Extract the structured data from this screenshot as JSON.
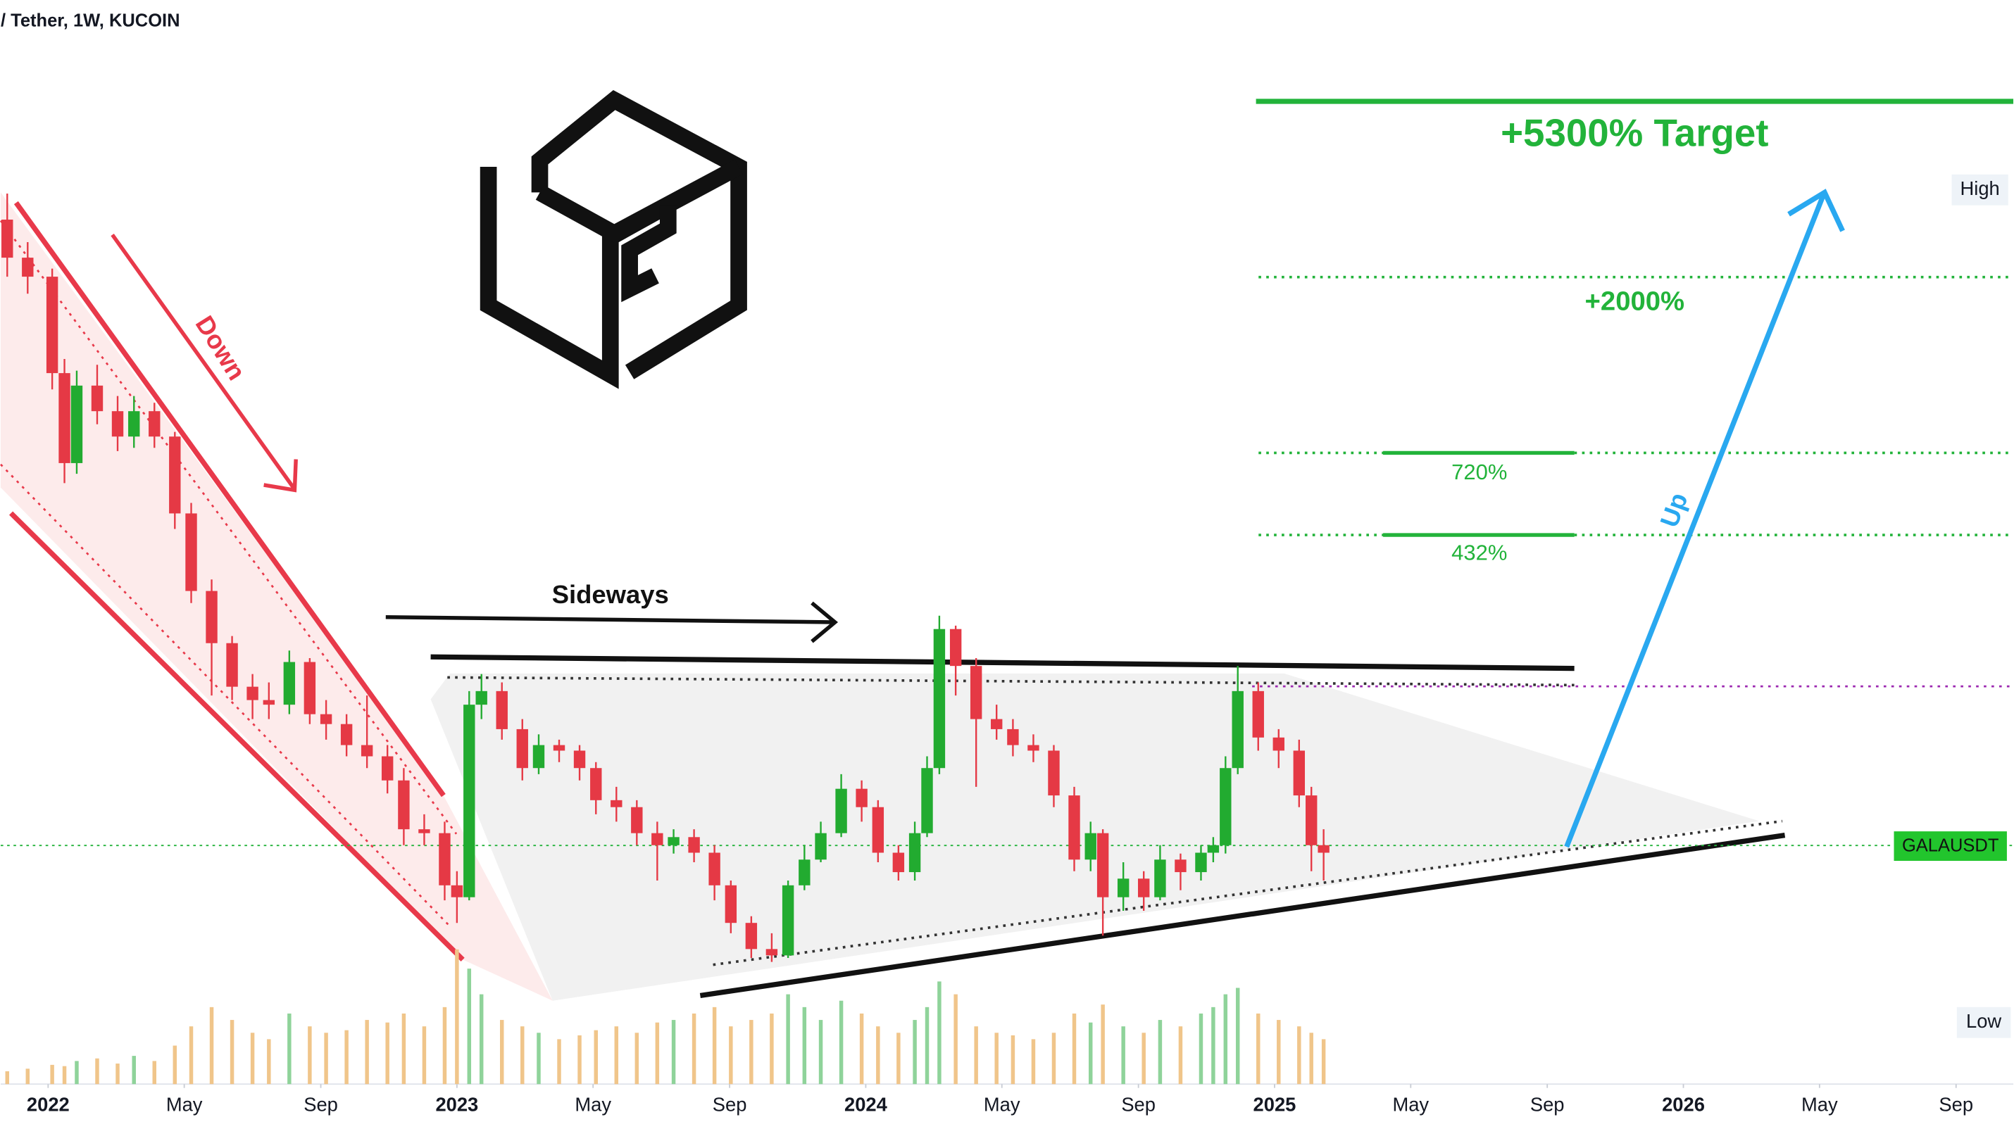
{
  "chart_data": {
    "type": "candlestick",
    "title": "/ Tether, 1W, KUCOIN",
    "log_scale": true,
    "ylim": [
      0.0114,
      0.92
    ],
    "xlim": [
      2021.884,
      2026.807
    ],
    "xticks": [
      2022,
      {
        "value": 2022.333,
        "label": "May"
      },
      {
        "value": 2022.667,
        "label": "Sep"
      },
      2023,
      {
        "value": 2023.333,
        "label": "May"
      },
      {
        "value": 2023.667,
        "label": "Sep"
      },
      2024,
      {
        "value": 2024.333,
        "label": "May"
      },
      {
        "value": 2024.667,
        "label": "Sep"
      },
      2025,
      {
        "value": 2025.333,
        "label": "May"
      },
      {
        "value": 2025.667,
        "label": "Sep"
      },
      2026,
      {
        "value": 2026.333,
        "label": "May"
      },
      {
        "value": 2026.667,
        "label": "Sep"
      }
    ],
    "up_color": "#22ab30",
    "down_color": "#e53945",
    "volume_up_color": "#8fd39a",
    "volume_down_color": "#f0c58a",
    "x": [
      2021.9,
      2021.95,
      2022.01,
      2022.04,
      2022.07,
      2022.12,
      2022.17,
      2022.21,
      2022.26,
      2022.31,
      2022.35,
      2022.4,
      2022.45,
      2022.5,
      2022.54,
      2022.59,
      2022.64,
      2022.68,
      2022.73,
      2022.78,
      2022.83,
      2022.87,
      2022.92,
      2022.97,
      2023.0,
      2023.03,
      2023.06,
      2023.11,
      2023.16,
      2023.2,
      2023.25,
      2023.3,
      2023.34,
      2023.39,
      2023.44,
      2023.49,
      2023.53,
      2023.58,
      2023.63,
      2023.67,
      2023.72,
      2023.77,
      2023.81,
      2023.85,
      2023.89,
      2023.94,
      2023.99,
      2024.03,
      2024.08,
      2024.12,
      2024.15,
      2024.18,
      2024.22,
      2024.27,
      2024.32,
      2024.36,
      2024.41,
      2024.46,
      2024.51,
      2024.55,
      2024.58,
      2024.63,
      2024.68,
      2024.72,
      2024.77,
      2024.82,
      2024.85,
      2024.88,
      2024.91,
      2024.96,
      2025.01,
      2025.06,
      2025.09,
      2025.12
    ],
    "open": [
      0.378,
      0.324,
      0.3,
      0.203,
      0.141,
      0.193,
      0.174,
      0.157,
      0.174,
      0.157,
      0.115,
      0.084,
      0.068,
      0.057,
      0.054,
      0.053,
      0.063,
      0.051,
      0.049,
      0.045,
      0.043,
      0.039,
      0.032,
      0.0315,
      0.0255,
      0.0243,
      0.053,
      0.056,
      0.048,
      0.041,
      0.045,
      0.044,
      0.041,
      0.036,
      0.035,
      0.0315,
      0.03,
      0.031,
      0.0291,
      0.0255,
      0.0219,
      0.0197,
      0.0192,
      0.0255,
      0.0283,
      0.0315,
      0.0377,
      0.035,
      0.0291,
      0.0269,
      0.0315,
      0.041,
      0.072,
      0.062,
      0.05,
      0.048,
      0.045,
      0.044,
      0.0367,
      0.0283,
      0.0315,
      0.0243,
      0.0262,
      0.0243,
      0.0283,
      0.0269,
      0.0291,
      0.03,
      0.041,
      0.056,
      0.0464,
      0.044,
      0.0367,
      0.03
    ],
    "high": [
      0.42,
      0.345,
      0.31,
      0.215,
      0.205,
      0.21,
      0.185,
      0.185,
      0.18,
      0.16,
      0.12,
      0.088,
      0.07,
      0.06,
      0.058,
      0.066,
      0.064,
      0.054,
      0.051,
      0.055,
      0.045,
      0.041,
      0.034,
      0.033,
      0.027,
      0.056,
      0.06,
      0.058,
      0.05,
      0.047,
      0.046,
      0.045,
      0.042,
      0.038,
      0.036,
      0.033,
      0.032,
      0.032,
      0.03,
      0.026,
      0.0225,
      0.021,
      0.026,
      0.03,
      0.033,
      0.04,
      0.039,
      0.036,
      0.03,
      0.033,
      0.043,
      0.076,
      0.073,
      0.064,
      0.053,
      0.05,
      0.047,
      0.045,
      0.038,
      0.033,
      0.032,
      0.028,
      0.027,
      0.03,
      0.029,
      0.03,
      0.031,
      0.043,
      0.062,
      0.058,
      0.048,
      0.046,
      0.038,
      0.032
    ],
    "low": [
      0.3,
      0.28,
      0.19,
      0.13,
      0.135,
      0.165,
      0.148,
      0.15,
      0.15,
      0.108,
      0.08,
      0.055,
      0.054,
      0.05,
      0.05,
      0.051,
      0.049,
      0.046,
      0.043,
      0.041,
      0.037,
      0.03,
      0.03,
      0.024,
      0.0219,
      0.024,
      0.05,
      0.046,
      0.039,
      0.04,
      0.042,
      0.039,
      0.034,
      0.033,
      0.03,
      0.026,
      0.029,
      0.028,
      0.024,
      0.021,
      0.019,
      0.0187,
      0.019,
      0.025,
      0.028,
      0.031,
      0.033,
      0.028,
      0.026,
      0.026,
      0.031,
      0.04,
      0.055,
      0.038,
      0.046,
      0.043,
      0.042,
      0.035,
      0.027,
      0.027,
      0.0208,
      0.023,
      0.023,
      0.024,
      0.025,
      0.026,
      0.028,
      0.029,
      0.04,
      0.044,
      0.041,
      0.035,
      0.027,
      0.026
    ],
    "close": [
      0.324,
      0.3,
      0.203,
      0.141,
      0.193,
      0.174,
      0.157,
      0.174,
      0.157,
      0.115,
      0.084,
      0.068,
      0.057,
      0.054,
      0.053,
      0.063,
      0.051,
      0.049,
      0.045,
      0.043,
      0.039,
      0.032,
      0.0315,
      0.0255,
      0.0243,
      0.053,
      0.056,
      0.048,
      0.041,
      0.045,
      0.044,
      0.041,
      0.036,
      0.035,
      0.0315,
      0.03,
      0.031,
      0.0291,
      0.0255,
      0.0219,
      0.0197,
      0.0192,
      0.0255,
      0.0283,
      0.0315,
      0.0377,
      0.035,
      0.0291,
      0.0269,
      0.0315,
      0.041,
      0.072,
      0.062,
      0.05,
      0.048,
      0.045,
      0.044,
      0.0367,
      0.0283,
      0.0315,
      0.0243,
      0.0262,
      0.0243,
      0.0283,
      0.0269,
      0.0291,
      0.03,
      0.041,
      0.056,
      0.0464,
      0.044,
      0.0367,
      0.03,
      0.0291
    ],
    "volume": [
      10,
      12,
      15,
      14,
      18,
      20,
      16,
      22,
      18,
      30,
      45,
      60,
      50,
      40,
      35,
      55,
      45,
      40,
      42,
      50,
      48,
      55,
      45,
      60,
      105,
      90,
      70,
      50,
      45,
      40,
      35,
      38,
      42,
      45,
      40,
      48,
      50,
      55,
      60,
      45,
      50,
      55,
      70,
      60,
      50,
      65,
      55,
      45,
      40,
      50,
      60,
      80,
      70,
      45,
      40,
      38,
      35,
      40,
      55,
      48,
      62,
      45,
      40,
      50,
      45,
      55,
      60,
      70,
      75,
      55,
      50,
      45,
      40,
      35
    ],
    "annotations": {
      "down": "Down",
      "sideways": "Sideways",
      "up": "Up",
      "target": "+5300% Target",
      "level_2000": "+2000%",
      "level_720": "720%",
      "level_432": "432%"
    },
    "price_scale": {
      "high": "High",
      "low": "Low",
      "symbol": "GALAUSDT"
    }
  }
}
